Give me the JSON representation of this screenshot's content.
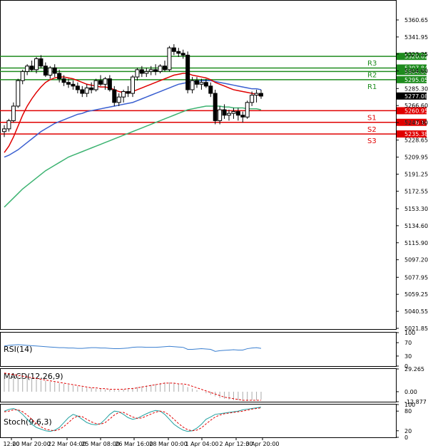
{
  "chart_data": {
    "type": "candlestick",
    "instrument_note": "",
    "y_ticks": [
      "5360.65",
      "5341.95",
      "5323.25",
      "5304.60",
      "5285.30",
      "5266.60",
      "5247.90",
      "5228.65",
      "5209.95",
      "5191.25",
      "5172.55",
      "5153.30",
      "5134.60",
      "5115.90",
      "5097.20",
      "5077.95",
      "5059.25",
      "5040.55",
      "5021.85"
    ],
    "x_labels": [
      "12:00",
      "20 Mar 20:00",
      "22 Mar 04:00",
      "25 Mar 08:00",
      "26 Mar 16:00",
      "28 Mar 00:00",
      "1 Apr 04:00",
      "2 Apr 12:00",
      "3 Apr 20:00"
    ],
    "ylim": [
      5021.85,
      5360.65
    ],
    "levels": [
      {
        "name": "R3",
        "value": 5320.62,
        "tag": "5320.62",
        "color": "#1e8c1e"
      },
      {
        "name": "R2",
        "value": 5307.84,
        "tag": "5307.84",
        "color": "#1e8c1e"
      },
      {
        "name": "",
        "value": 5304.0,
        "tag": "5304.00",
        "color": "#1e8c1e"
      },
      {
        "name": "R1",
        "value": 5295.05,
        "tag": "5295.05",
        "color": "#1e8c1e"
      },
      {
        "name": "S1",
        "value": 5260.95,
        "tag": "5260.95",
        "color": "#e00000"
      },
      {
        "name": "S2",
        "value": 5248.16,
        "tag": "5248.16",
        "color": "#e00000"
      },
      {
        "name": "S3",
        "value": 5235.38,
        "tag": "5235.38",
        "color": "#e00000"
      }
    ],
    "current_price": {
      "value": 5277.08,
      "tag": "5277.08"
    },
    "candles": [
      [
        5238,
        5245,
        5232,
        5241
      ],
      [
        5241,
        5252,
        5238,
        5250
      ],
      [
        5250,
        5270,
        5248,
        5266
      ],
      [
        5266,
        5296,
        5264,
        5294
      ],
      [
        5294,
        5306,
        5290,
        5304
      ],
      [
        5304,
        5312,
        5300,
        5310
      ],
      [
        5310,
        5316,
        5304,
        5306
      ],
      [
        5306,
        5320,
        5302,
        5318
      ],
      [
        5318,
        5322,
        5308,
        5310
      ],
      [
        5310,
        5314,
        5298,
        5300
      ],
      [
        5300,
        5310,
        5296,
        5308
      ],
      [
        5308,
        5312,
        5298,
        5302
      ],
      [
        5302,
        5306,
        5292,
        5296
      ],
      [
        5296,
        5300,
        5288,
        5292
      ],
      [
        5292,
        5296,
        5286,
        5290
      ],
      [
        5290,
        5294,
        5284,
        5288
      ],
      [
        5288,
        5292,
        5280,
        5284
      ],
      [
        5284,
        5288,
        5276,
        5280
      ],
      [
        5280,
        5290,
        5276,
        5286
      ],
      [
        5286,
        5292,
        5280,
        5284
      ],
      [
        5284,
        5296,
        5282,
        5294
      ],
      [
        5294,
        5300,
        5288,
        5290
      ],
      [
        5290,
        5298,
        5284,
        5296
      ],
      [
        5296,
        5300,
        5282,
        5284
      ],
      [
        5284,
        5288,
        5266,
        5270
      ],
      [
        5270,
        5280,
        5266,
        5276
      ],
      [
        5276,
        5284,
        5270,
        5282
      ],
      [
        5282,
        5288,
        5276,
        5280
      ],
      [
        5280,
        5300,
        5276,
        5298
      ],
      [
        5298,
        5308,
        5294,
        5306
      ],
      [
        5306,
        5310,
        5298,
        5302
      ],
      [
        5302,
        5308,
        5298,
        5304
      ],
      [
        5304,
        5310,
        5300,
        5306
      ],
      [
        5306,
        5312,
        5300,
        5304
      ],
      [
        5304,
        5312,
        5302,
        5310
      ],
      [
        5310,
        5316,
        5304,
        5306
      ],
      [
        5306,
        5332,
        5304,
        5330
      ],
      [
        5330,
        5334,
        5322,
        5326
      ],
      [
        5326,
        5330,
        5320,
        5324
      ],
      [
        5324,
        5328,
        5318,
        5322
      ],
      [
        5322,
        5326,
        5280,
        5284
      ],
      [
        5284,
        5298,
        5280,
        5294
      ],
      [
        5294,
        5298,
        5286,
        5290
      ],
      [
        5290,
        5296,
        5284,
        5292
      ],
      [
        5292,
        5296,
        5286,
        5288
      ],
      [
        5288,
        5292,
        5276,
        5280
      ],
      [
        5280,
        5284,
        5246,
        5250
      ],
      [
        5250,
        5266,
        5246,
        5262
      ],
      [
        5262,
        5268,
        5252,
        5256
      ],
      [
        5256,
        5262,
        5250,
        5258
      ],
      [
        5258,
        5264,
        5252,
        5260
      ],
      [
        5260,
        5264,
        5250,
        5256
      ],
      [
        5256,
        5260,
        5248,
        5254
      ],
      [
        5254,
        5272,
        5252,
        5270
      ],
      [
        5270,
        5282,
        5266,
        5278
      ],
      [
        5278,
        5284,
        5270,
        5280
      ],
      [
        5280,
        5284,
        5274,
        5277
      ]
    ],
    "ma_red": [
      5215,
      5222,
      5232,
      5244,
      5256,
      5266,
      5274,
      5281,
      5287,
      5292,
      5295,
      5297,
      5298,
      5298,
      5297,
      5296,
      5294,
      5292,
      5290,
      5289,
      5288,
      5287,
      5287,
      5286,
      5284,
      5282,
      5281,
      5281,
      5282,
      5284,
      5286,
      5288,
      5290,
      5292,
      5294,
      5296,
      5298,
      5300,
      5301,
      5302,
      5302,
      5300,
      5299,
      5298,
      5297,
      5295,
      5292,
      5290,
      5288,
      5286,
      5284,
      5283,
      5282,
      5281,
      5280,
      5279,
      5277
    ],
    "ma_blue": [
      5210,
      5212,
      5215,
      5218,
      5222,
      5226,
      5230,
      5234,
      5238,
      5241,
      5244,
      5247,
      5249,
      5251,
      5253,
      5255,
      5257,
      5258,
      5260,
      5261,
      5262,
      5263,
      5264,
      5265,
      5266,
      5267,
      5268,
      5269,
      5270,
      5272,
      5274,
      5276,
      5278,
      5280,
      5282,
      5284,
      5286,
      5288,
      5290,
      5291,
      5292,
      5293,
      5293,
      5294,
      5294,
      5294,
      5293,
      5292,
      5291,
      5290,
      5289,
      5288,
      5287,
      5286,
      5285,
      5285,
      5284
    ],
    "ma_green": [
      5155,
      5160,
      5165,
      5170,
      5175,
      5179,
      5183,
      5187,
      5191,
      5195,
      5198,
      5201,
      5204,
      5207,
      5210,
      5212,
      5214,
      5216,
      5218,
      5220,
      5222,
      5224,
      5226,
      5228,
      5230,
      5232,
      5234,
      5236,
      5238,
      5240,
      5242,
      5244,
      5246,
      5248,
      5250,
      5252,
      5254,
      5256,
      5258,
      5260,
      5262,
      5263,
      5264,
      5265,
      5266,
      5266,
      5266,
      5266,
      5265,
      5265,
      5264,
      5264,
      5264,
      5263,
      5263,
      5263,
      5262
    ],
    "indicators": {
      "rsi": {
        "label": "RSI(14)",
        "ticks": [
          "100",
          "70",
          "30",
          "0"
        ],
        "values": [
          60,
          62,
          63,
          64,
          63,
          62,
          61,
          60,
          59,
          58,
          57,
          56,
          55,
          55,
          54,
          54,
          53,
          53,
          54,
          55,
          55,
          54,
          54,
          53,
          52,
          52,
          53,
          54,
          56,
          57,
          57,
          56,
          56,
          56,
          57,
          58,
          59,
          58,
          57,
          56,
          50,
          50,
          51,
          52,
          51,
          50,
          44,
          46,
          47,
          48,
          49,
          48,
          48,
          52,
          54,
          55,
          53
        ]
      },
      "macd": {
        "label": "MACD(12,26,9)",
        "ticks": [
          "29.265",
          "0.00",
          "-12.877"
        ],
        "hist": [
          22,
          22,
          21,
          20,
          19,
          18,
          17,
          16,
          15,
          14,
          13,
          12,
          11,
          10,
          9,
          8,
          7,
          6,
          5,
          5,
          4,
          4,
          3,
          3,
          2,
          2,
          3,
          4,
          5,
          6,
          7,
          8,
          9,
          10,
          11,
          12,
          12,
          11,
          10,
          9,
          6,
          4,
          2,
          0,
          -2,
          -4,
          -6,
          -8,
          -9,
          -10,
          -11,
          -11,
          -12,
          -12,
          -11,
          -11,
          -10
        ],
        "signal": [
          24,
          23,
          22,
          21,
          20,
          19,
          18,
          17,
          16,
          15,
          14,
          13,
          12,
          11,
          10,
          9,
          8,
          7,
          6,
          5,
          5,
          4,
          4,
          3,
          3,
          3,
          3,
          4,
          4,
          5,
          6,
          7,
          8,
          9,
          10,
          11,
          11,
          11,
          10,
          10,
          9,
          7,
          5,
          3,
          1,
          -1,
          -3,
          -5,
          -7,
          -8,
          -9,
          -10,
          -11,
          -11,
          -11,
          -11,
          -11
        ]
      },
      "stoch": {
        "label": "Stoch(9,6,3)",
        "ticks": [
          "100",
          "80",
          "20",
          "0"
        ],
        "k": [
          80,
          85,
          88,
          82,
          70,
          55,
          40,
          30,
          25,
          20,
          18,
          22,
          30,
          45,
          60,
          70,
          65,
          55,
          45,
          40,
          38,
          42,
          55,
          70,
          80,
          78,
          70,
          60,
          55,
          58,
          65,
          72,
          78,
          82,
          80,
          70,
          55,
          40,
          30,
          22,
          18,
          20,
          28,
          40,
          55,
          62,
          70,
          72,
          74,
          76,
          78,
          80,
          84,
          86,
          88,
          90,
          92
        ],
        "d": [
          78,
          80,
          84,
          84,
          78,
          68,
          55,
          42,
          32,
          25,
          22,
          20,
          24,
          33,
          45,
          58,
          65,
          63,
          55,
          47,
          42,
          40,
          45,
          56,
          68,
          76,
          76,
          69,
          62,
          58,
          59,
          65,
          71,
          77,
          80,
          77,
          68,
          55,
          42,
          31,
          23,
          20,
          22,
          29,
          41,
          52,
          62,
          68,
          72,
          74,
          76,
          78,
          80,
          83,
          86,
          88,
          90
        ]
      }
    }
  }
}
